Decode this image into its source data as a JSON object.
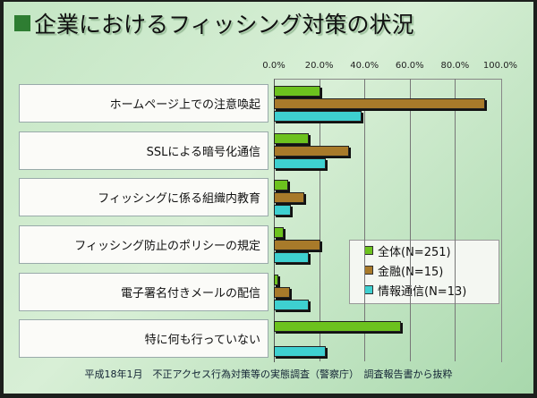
{
  "title": "企業におけるフィッシング対策の状況",
  "footer": "平成18年1月　不正アクセス行為対策等の実態調査（警察庁）　調査報告書から抜粋",
  "chart_data": {
    "type": "bar",
    "orientation": "horizontal",
    "categories": [
      "ホームページ上での注意喚起",
      "SSLによる暗号化通信",
      "フィッシングに係る組織内教育",
      "フィッシング防止のポリシーの規定",
      "電子署名付きメールの配信",
      "特に何も行っていない"
    ],
    "series": [
      {
        "name": "全体(N=251)",
        "color": "#6cc21e",
        "values": [
          20.5,
          15.3,
          6.4,
          4.5,
          2.0,
          56.3
        ]
      },
      {
        "name": "金融(N=15)",
        "color": "#a87a2a",
        "values": [
          93.4,
          33.3,
          13.5,
          20.5,
          7.0,
          0
        ]
      },
      {
        "name": "情報通信(N=13)",
        "color": "#3ed0d0",
        "values": [
          38.6,
          23.0,
          7.6,
          15.6,
          15.6,
          23.0
        ]
      }
    ],
    "xlim": [
      0,
      100
    ],
    "tick_labels": [
      "0.0%",
      "20.0%",
      "40.0%",
      "60.0%",
      "80.0%",
      "100.0%"
    ],
    "grid": true,
    "legend": "bottom-right"
  }
}
